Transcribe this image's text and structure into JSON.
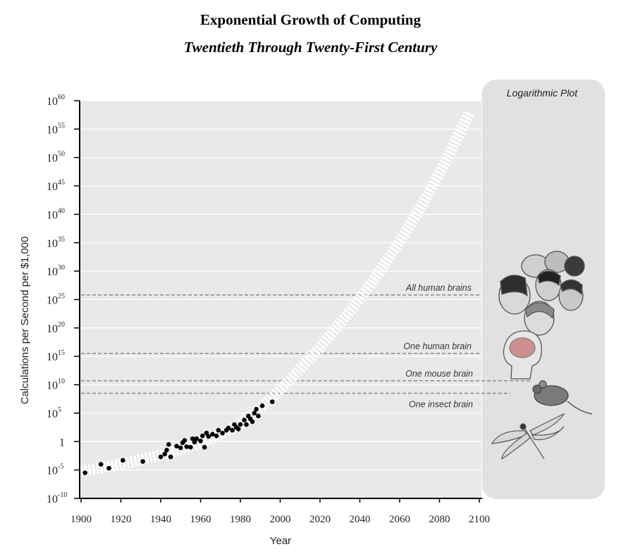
{
  "chart_data": {
    "type": "scatter",
    "title": "Exponential Growth of Computing",
    "subtitle": "Twentieth Through Twenty-First Century",
    "panel_label": "Logarithmic Plot",
    "xlabel": "Year",
    "ylabel": "Calculations per Second per $1,000",
    "xlim": [
      1900,
      2100
    ],
    "ylim_exponent": [
      -10,
      60
    ],
    "y_scale": "log",
    "x_ticks": [
      "1900",
      "1920",
      "1940",
      "1960",
      "1980",
      "2000",
      "2020",
      "2040",
      "2060",
      "2080",
      "2100"
    ],
    "y_ticks": [
      {
        "base": "10",
        "exp": "-10",
        "e": -10
      },
      {
        "base": "10",
        "exp": "-5",
        "e": -5
      },
      {
        "base": "1",
        "exp": "",
        "e": 0
      },
      {
        "base": "10",
        "exp": "5",
        "e": 5
      },
      {
        "base": "10",
        "exp": "10",
        "e": 10
      },
      {
        "base": "10",
        "exp": "15",
        "e": 15
      },
      {
        "base": "10",
        "exp": "20",
        "e": 20
      },
      {
        "base": "10",
        "exp": "25",
        "e": 25
      },
      {
        "base": "10",
        "exp": "30",
        "e": 30
      },
      {
        "base": "10",
        "exp": "35",
        "e": 35
      },
      {
        "base": "10",
        "exp": "40",
        "e": 40
      },
      {
        "base": "10",
        "exp": "45",
        "e": 45
      },
      {
        "base": "10",
        "exp": "50",
        "e": 50
      },
      {
        "base": "10",
        "exp": "55",
        "e": 55
      },
      {
        "base": "10",
        "exp": "60",
        "e": 60
      }
    ],
    "grid": true,
    "reference_lines": [
      {
        "label": "All human brains",
        "log10_value": 25.8
      },
      {
        "label": "One human brain",
        "log10_value": 15.5
      },
      {
        "label": "One mouse brain",
        "log10_value": 10.7
      },
      {
        "label": "One insect brain",
        "log10_value": 8.5
      }
    ],
    "trend_curve": {
      "x": [
        1900,
        1920,
        1940,
        1960,
        1980,
        2000,
        2020,
        2040,
        2060,
        2080,
        2095
      ],
      "log10_y": [
        -5.2,
        -4.0,
        -2.4,
        -0.3,
        2.8,
        9.0,
        16.5,
        25.0,
        35.0,
        47.0,
        58.0
      ]
    },
    "points": {
      "x": [
        1902,
        1910,
        1914,
        1921,
        1931,
        1940,
        1942,
        1943,
        1944,
        1945,
        1948,
        1950,
        1951,
        1952,
        1953,
        1955,
        1956,
        1957,
        1958,
        1960,
        1961,
        1962,
        1963,
        1964,
        1966,
        1968,
        1969,
        1971,
        1973,
        1974,
        1976,
        1977,
        1978,
        1979,
        1980,
        1982,
        1983,
        1984,
        1985,
        1986,
        1987,
        1988,
        1989,
        1991,
        1996
      ],
      "log10_y": [
        -5.5,
        -4.0,
        -4.7,
        -3.3,
        -3.5,
        -2.7,
        -2.2,
        -1.5,
        -0.5,
        -2.7,
        -0.8,
        -1.1,
        -0.2,
        0.2,
        -0.9,
        -1.0,
        0.5,
        -0.1,
        0.5,
        0.1,
        1.0,
        -1.0,
        1.5,
        0.9,
        1.3,
        1.0,
        2.0,
        1.5,
        2.0,
        2.4,
        2.0,
        3.0,
        2.5,
        2.2,
        3.0,
        3.8,
        3.0,
        4.5,
        4.0,
        3.5,
        5.0,
        5.7,
        4.5,
        6.3,
        7.0
      ]
    }
  }
}
